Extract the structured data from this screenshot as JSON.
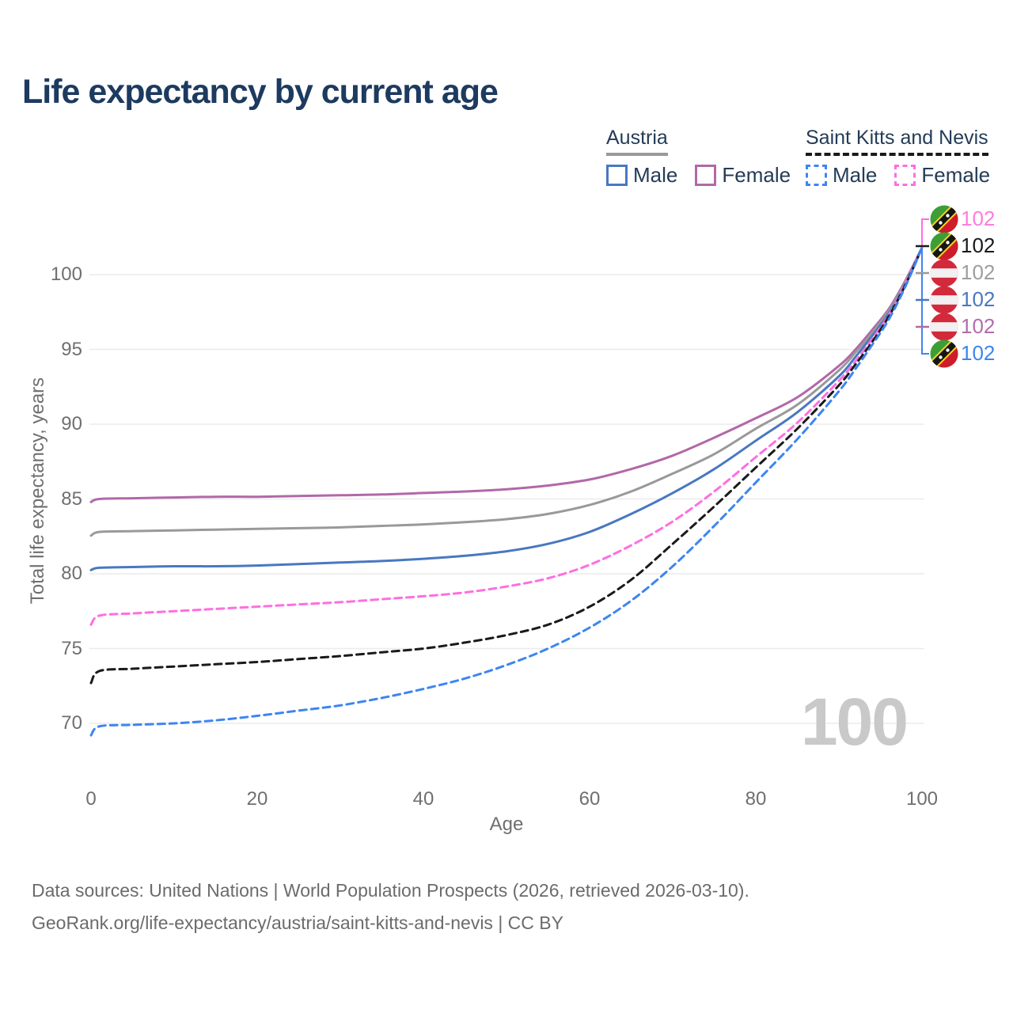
{
  "header": {
    "title": "Life expectancy by current age"
  },
  "legend": {
    "groups": [
      {
        "name": "Austria",
        "line_style": "solid",
        "underline_color": "#999999",
        "items": [
          {
            "label": "Male",
            "color": "#4878c1",
            "dash": "solid"
          },
          {
            "label": "Female",
            "color": "#b268a8",
            "dash": "solid"
          }
        ]
      },
      {
        "name": "Saint Kitts and Nevis",
        "line_style": "dashed",
        "underline_color": "#1a1a1a",
        "items": [
          {
            "label": "Male",
            "color": "#3d85f2",
            "dash": "dashed"
          },
          {
            "label": "Female",
            "color": "#ff6ee0",
            "dash": "dashed"
          }
        ]
      }
    ]
  },
  "chart_data": {
    "type": "line",
    "title": "Life expectancy by current age",
    "xlabel": "Age",
    "ylabel": "Total life expectancy, years",
    "xlim": [
      0,
      100
    ],
    "ylim": [
      67.5,
      103
    ],
    "xticks": [
      0,
      20,
      40,
      60,
      80,
      100
    ],
    "yticks": [
      70,
      75,
      80,
      85,
      90,
      95,
      100
    ],
    "grid": "horizontal",
    "gridline_color": "#ebebeb",
    "watermark": "100",
    "x": [
      0,
      1,
      5,
      10,
      15,
      20,
      25,
      30,
      35,
      40,
      45,
      50,
      55,
      60,
      65,
      70,
      75,
      80,
      85,
      90,
      92,
      94,
      96,
      98,
      100
    ],
    "series": [
      {
        "id": "austria-female",
        "name": "Austria Female",
        "color": "#b268a8",
        "dash": "solid",
        "values": [
          84.8,
          85.0,
          85.05,
          85.1,
          85.15,
          85.15,
          85.2,
          85.25,
          85.3,
          85.4,
          85.5,
          85.65,
          85.9,
          86.3,
          87.0,
          87.9,
          89.1,
          90.4,
          91.8,
          93.9,
          95.0,
          96.3,
          97.7,
          99.6,
          101.8
        ]
      },
      {
        "id": "austria-all",
        "name": "Austria",
        "color": "#999999",
        "dash": "solid",
        "values": [
          82.55,
          82.8,
          82.85,
          82.9,
          82.95,
          83.0,
          83.05,
          83.1,
          83.2,
          83.3,
          83.45,
          83.65,
          84.0,
          84.6,
          85.5,
          86.7,
          88.0,
          89.7,
          91.3,
          93.6,
          94.8,
          96.1,
          97.6,
          99.5,
          101.8
        ]
      },
      {
        "id": "austria-male",
        "name": "Austria Male",
        "color": "#4878c1",
        "dash": "solid",
        "values": [
          80.25,
          80.4,
          80.45,
          80.5,
          80.5,
          80.55,
          80.65,
          80.75,
          80.85,
          81.0,
          81.2,
          81.5,
          82.0,
          82.8,
          84.0,
          85.4,
          87.0,
          88.9,
          90.8,
          93.2,
          94.5,
          95.9,
          97.4,
          99.4,
          101.8
        ]
      },
      {
        "id": "skn-female",
        "name": "Saint Kitts and Nevis Female",
        "color": "#ff6ee0",
        "dash": "dashed",
        "values": [
          76.6,
          77.2,
          77.35,
          77.5,
          77.65,
          77.8,
          77.95,
          78.1,
          78.3,
          78.5,
          78.75,
          79.15,
          79.7,
          80.6,
          81.9,
          83.5,
          85.5,
          87.8,
          90.1,
          92.9,
          94.2,
          95.7,
          97.3,
          99.4,
          101.8
        ]
      },
      {
        "id": "skn-all",
        "name": "Saint Kitts and Nevis",
        "color": "#1a1a1a",
        "dash": "dashed",
        "values": [
          72.7,
          73.5,
          73.65,
          73.8,
          73.95,
          74.1,
          74.3,
          74.5,
          74.75,
          75.0,
          75.4,
          75.9,
          76.6,
          77.8,
          79.6,
          82.0,
          84.5,
          87.1,
          89.7,
          92.6,
          94.0,
          95.5,
          97.2,
          99.3,
          101.8
        ]
      },
      {
        "id": "skn-male",
        "name": "Saint Kitts and Nevis Male",
        "color": "#3d85f2",
        "dash": "dashed",
        "values": [
          69.2,
          69.8,
          69.9,
          70.0,
          70.2,
          70.5,
          70.85,
          71.2,
          71.7,
          72.3,
          73.0,
          73.9,
          75.0,
          76.4,
          78.2,
          80.5,
          83.2,
          86.1,
          89.0,
          92.2,
          93.7,
          95.3,
          97.0,
          99.2,
          101.8
        ]
      }
    ],
    "end_labels": [
      {
        "flag": "saint-kitts-and-nevis",
        "value": "102",
        "color": "#ff7be0",
        "series": "skn-female"
      },
      {
        "flag": "saint-kitts-and-nevis",
        "value": "102",
        "color": "#1a1a1a",
        "series": "skn-all"
      },
      {
        "flag": "austria",
        "value": "102",
        "color": "#9e9e9e",
        "series": "austria-all"
      },
      {
        "flag": "austria",
        "value": "102",
        "color": "#4878c1",
        "series": "austria-male"
      },
      {
        "flag": "austria",
        "value": "102",
        "color": "#b36cab",
        "series": "austria-female"
      },
      {
        "flag": "saint-kitts-and-nevis",
        "value": "102",
        "color": "#3d85f2",
        "series": "skn-male"
      }
    ]
  },
  "footer": {
    "line1": "Data sources: United Nations | World Population Prospects (2026, retrieved 2026-03-10).",
    "line2": "GeoRank.org/life-expectancy/austria/saint-kitts-and-nevis | CC BY"
  }
}
